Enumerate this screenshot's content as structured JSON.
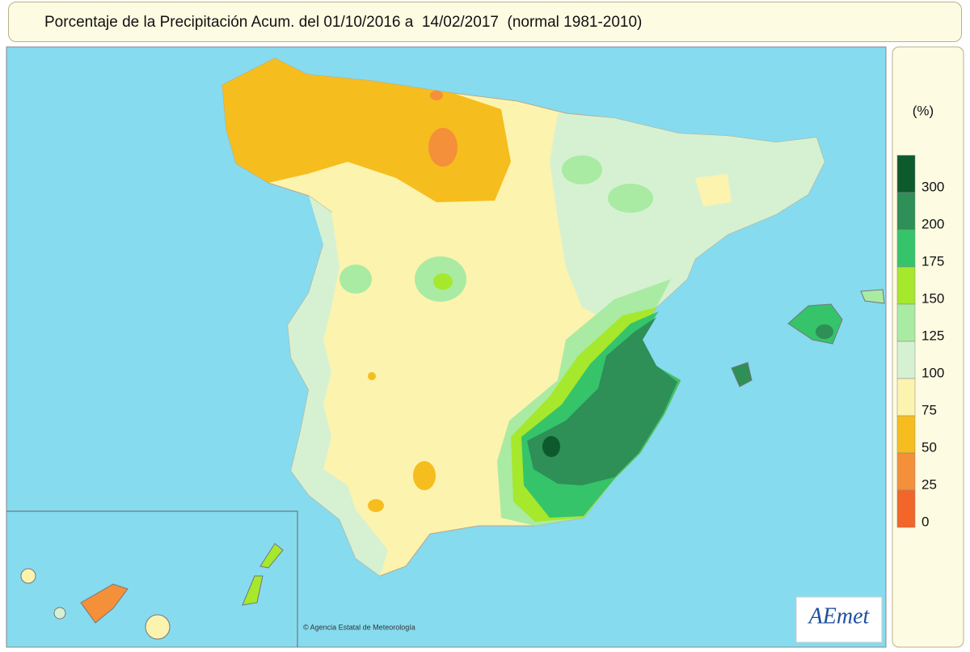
{
  "header": {
    "title": "Porcentaje de la Precipitación Acum. del 01/10/2016 a  14/02/2017  (normal 1981-2010)"
  },
  "legend": {
    "unit": "(%)",
    "items": [
      {
        "label": 300,
        "color": "#0d5a2e"
      },
      {
        "label": 200,
        "color": "#2e8f57"
      },
      {
        "label": 175,
        "color": "#35c46a"
      },
      {
        "label": 150,
        "color": "#a6e82c"
      },
      {
        "label": 125,
        "color": "#a9eba2"
      },
      {
        "label": 100,
        "color": "#d6f1d2"
      },
      {
        "label": 75,
        "color": "#fcf3ae"
      },
      {
        "label": 50,
        "color": "#f6bd1e"
      },
      {
        "label": 25,
        "color": "#f48f3a"
      },
      {
        "label": 0,
        "color": "#f2662a"
      }
    ]
  },
  "credit": "© Agencia Estatal de Meteorología",
  "logo": "AEmet"
}
